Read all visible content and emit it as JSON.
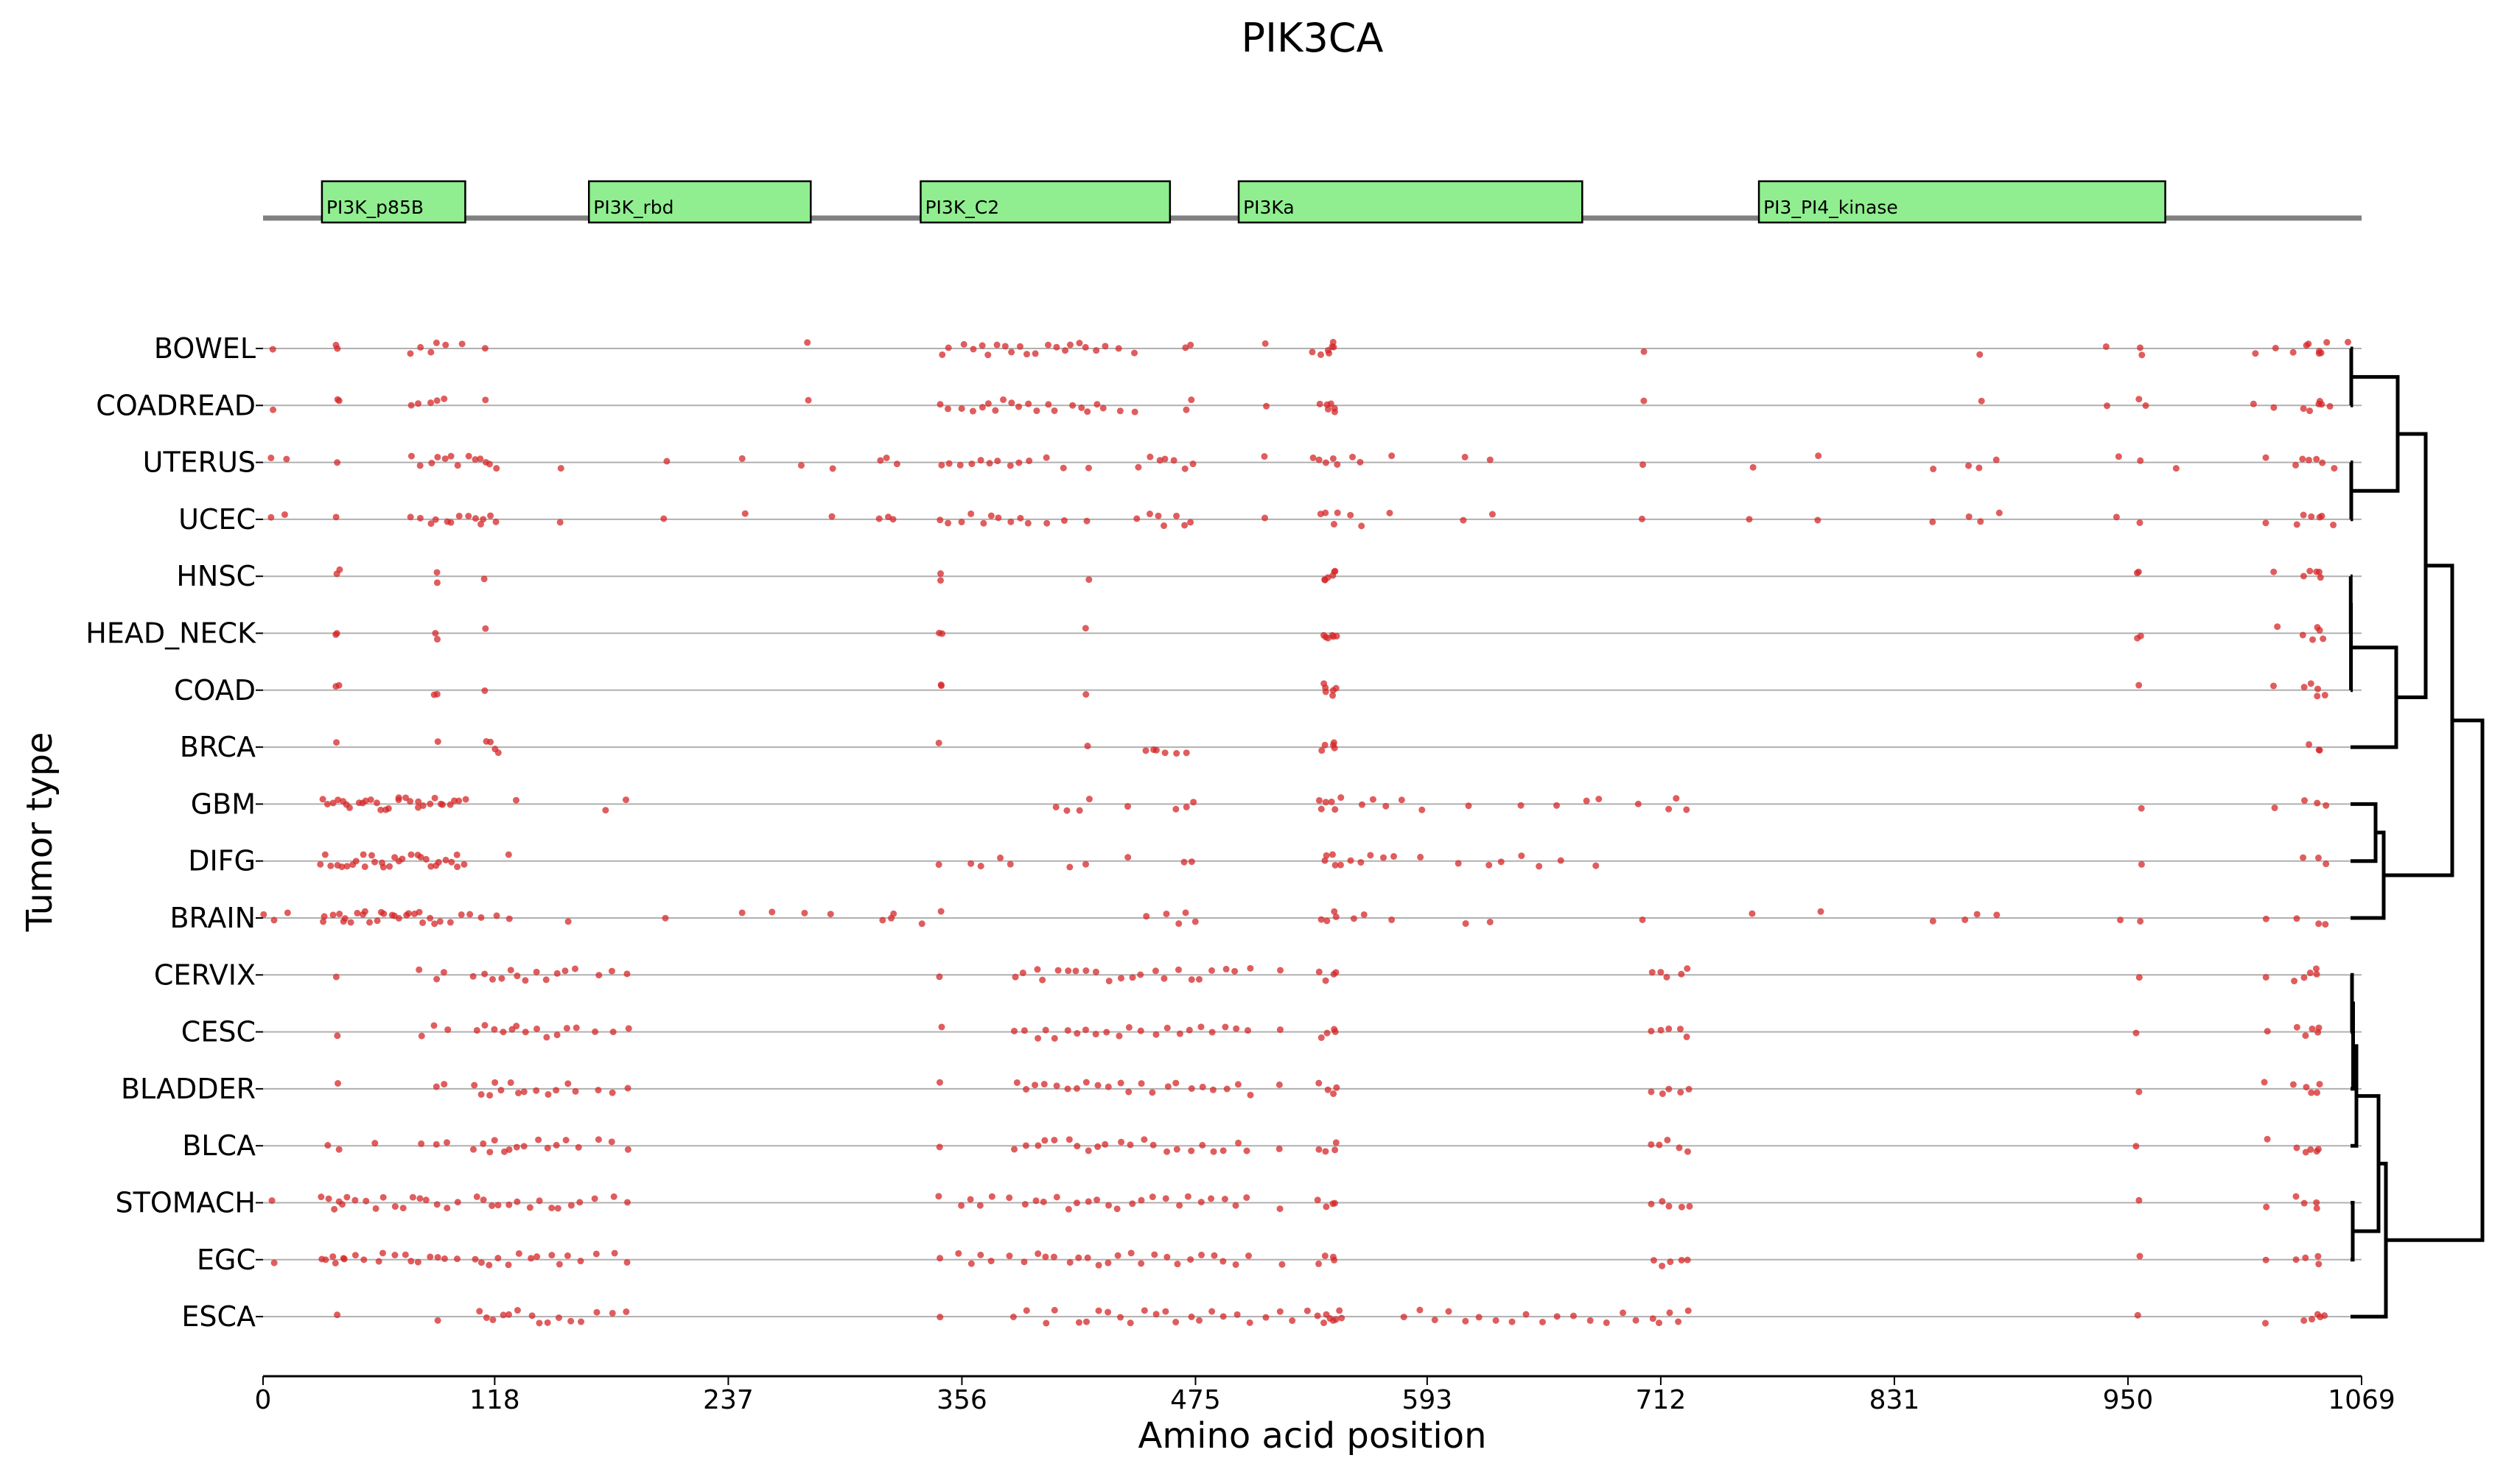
{
  "chart_data": {
    "type": "scatter",
    "title": "PIK3CA",
    "xlabel": "Amino acid position",
    "ylabel": "Tumor type",
    "xlim": [
      0,
      1069
    ],
    "xticks": [
      0,
      118,
      237,
      356,
      475,
      593,
      712,
      831,
      950,
      1069
    ],
    "grid": "horizontal row lines",
    "point_color": "#d62728",
    "domain_color": "#90ee90",
    "protein_line_color": "#808080",
    "domains": [
      {
        "name": "PI3K_p85B",
        "start": 30,
        "end": 103
      },
      {
        "name": "PI3K_rbd",
        "start": 166,
        "end": 279
      },
      {
        "name": "PI3K_C2",
        "start": 335,
        "end": 462
      },
      {
        "name": "PI3Ka",
        "start": 497,
        "end": 672
      },
      {
        "name": "PI3_PI4_kinase",
        "start": 762,
        "end": 969
      }
    ],
    "categories": [
      "BOWEL",
      "COADREAD",
      "UTERUS",
      "UCEC",
      "HNSC",
      "HEAD_NECK",
      "COAD",
      "BRCA",
      "GBM",
      "DIFG",
      "BRAIN",
      "CERVIX",
      "CESC",
      "BLADDER",
      "BLCA",
      "STOMACH",
      "EGC",
      "ESCA"
    ],
    "mutations": {
      "BOWEL": [
        5,
        38,
        38,
        76,
        80,
        86,
        88,
        93,
        101,
        113,
        278,
        345,
        350,
        356,
        362,
        366,
        370,
        374,
        378,
        382,
        386,
        390,
        394,
        400,
        404,
        408,
        412,
        416,
        420,
        424,
        428,
        436,
        444,
        470,
        473,
        510,
        535,
        538,
        542,
        542,
        545,
        545,
        546,
        703,
        875,
        940,
        956,
        958,
        1015,
        1025,
        1035,
        1040,
        1043,
        1047,
        1047,
        1049,
        1052,
        1063
      ],
      "COADREAD": [
        5,
        38,
        38,
        76,
        80,
        86,
        88,
        93,
        113,
        278,
        345,
        350,
        356,
        362,
        366,
        370,
        374,
        378,
        382,
        386,
        390,
        394,
        400,
        404,
        412,
        416,
        420,
        424,
        428,
        436,
        444,
        470,
        473,
        510,
        538,
        542,
        542,
        545,
        545,
        546,
        703,
        875,
        940,
        956,
        958,
        1015,
        1025,
        1040,
        1043,
        1047,
        1047,
        1049,
        1052
      ],
      "UTERUS": [
        5,
        12,
        38,
        76,
        81,
        86,
        88,
        93,
        96,
        100,
        104,
        108,
        111,
        113,
        116,
        118,
        152,
        205,
        245,
        275,
        290,
        315,
        318,
        322,
        345,
        350,
        356,
        360,
        366,
        370,
        375,
        380,
        385,
        390,
        400,
        408,
        420,
        446,
        452,
        456,
        460,
        465,
        470,
        473,
        510,
        535,
        538,
        542,
        545,
        547,
        555,
        560,
        575,
        612,
        626,
        703,
        758,
        793,
        850,
        868,
        874,
        884,
        945,
        956,
        975,
        1020,
        1035,
        1040,
        1043,
        1047,
        1049,
        1055
      ],
      "UCEC": [
        5,
        12,
        38,
        76,
        81,
        86,
        88,
        93,
        96,
        100,
        104,
        108,
        111,
        113,
        116,
        118,
        152,
        205,
        245,
        290,
        315,
        318,
        322,
        345,
        350,
        356,
        360,
        366,
        370,
        375,
        380,
        385,
        390,
        400,
        408,
        420,
        446,
        452,
        456,
        460,
        465,
        470,
        473,
        510,
        538,
        542,
        545,
        547,
        555,
        560,
        575,
        612,
        626,
        703,
        758,
        793,
        850,
        868,
        874,
        884,
        945,
        956,
        1020,
        1035,
        1040,
        1043,
        1047,
        1049,
        1055
      ],
      "HNSC": [
        38,
        38,
        88,
        88,
        113,
        345,
        345,
        420,
        540,
        542,
        542,
        545,
        545,
        546,
        955,
        956,
        1025,
        1040,
        1043,
        1047,
        1047,
        1049
      ],
      "HEAD_NECK": [
        38,
        38,
        88,
        88,
        113,
        345,
        345,
        420,
        540,
        542,
        542,
        545,
        545,
        546,
        955,
        956,
        1025,
        1040,
        1043,
        1047,
        1047,
        1049
      ],
      "COAD": [
        38,
        38,
        88,
        88,
        113,
        345,
        345,
        420,
        540,
        542,
        542,
        545,
        545,
        546,
        956,
        1025,
        1040,
        1043,
        1047,
        1047,
        1050
      ],
      "BRCA": [
        38,
        88,
        113,
        116,
        118,
        120,
        345,
        420,
        449,
        453,
        456,
        460,
        465,
        470,
        540,
        542,
        545,
        545,
        546,
        1043,
        1047,
        1047
      ],
      "GBM": [
        30,
        32,
        35,
        38,
        40,
        42,
        45,
        48,
        50,
        52,
        55,
        58,
        60,
        62,
        65,
        68,
        70,
        72,
        75,
        78,
        80,
        82,
        85,
        88,
        90,
        92,
        95,
        98,
        100,
        103,
        130,
        175,
        185,
        404,
        410,
        416,
        420,
        440,
        466,
        470,
        473,
        538,
        540,
        542,
        545,
        546,
        548,
        560,
        566,
        572,
        580,
        590,
        615,
        640,
        660,
        675,
        680,
        700,
        715,
        720,
        726,
        956,
        1025,
        1040,
        1047,
        1050
      ],
      "DIFG": [
        30,
        32,
        35,
        38,
        40,
        42,
        45,
        48,
        50,
        52,
        55,
        58,
        60,
        62,
        65,
        68,
        70,
        72,
        75,
        78,
        80,
        82,
        85,
        88,
        90,
        92,
        95,
        98,
        100,
        103,
        126,
        345,
        360,
        366,
        375,
        380,
        410,
        420,
        440,
        470,
        473,
        540,
        542,
        545,
        546,
        548,
        555,
        560,
        565,
        570,
        575,
        590,
        610,
        625,
        630,
        640,
        650,
        660,
        680,
        956,
        1040,
        1047,
        1050
      ],
      "BRAIN": [
        0,
        5,
        12,
        30,
        32,
        35,
        38,
        40,
        42,
        45,
        48,
        50,
        52,
        55,
        58,
        60,
        62,
        65,
        68,
        70,
        72,
        75,
        78,
        80,
        82,
        85,
        88,
        90,
        95,
        100,
        105,
        110,
        118,
        125,
        155,
        205,
        245,
        260,
        275,
        290,
        315,
        320,
        322,
        335,
        345,
        450,
        460,
        466,
        470,
        475,
        538,
        542,
        545,
        546,
        555,
        560,
        575,
        612,
        626,
        703,
        758,
        793,
        850,
        868,
        874,
        884,
        945,
        956,
        1020,
        1035,
        1047,
        1050
      ],
      "CERVIX": [
        38,
        80,
        88,
        93,
        108,
        112,
        118,
        122,
        126,
        130,
        134,
        140,
        145,
        150,
        155,
        160,
        170,
        178,
        186,
        345,
        383,
        388,
        394,
        398,
        404,
        410,
        415,
        420,
        425,
        430,
        436,
        442,
        448,
        454,
        460,
        466,
        472,
        478,
        484,
        490,
        496,
        502,
        518,
        538,
        542,
        545,
        546,
        708,
        712,
        716,
        722,
        726,
        955,
        1020,
        1035,
        1040,
        1043,
        1047,
        1047
      ],
      "CESC": [
        38,
        80,
        88,
        93,
        108,
        112,
        118,
        122,
        126,
        130,
        134,
        140,
        145,
        150,
        155,
        160,
        170,
        178,
        186,
        345,
        383,
        388,
        394,
        398,
        404,
        410,
        415,
        420,
        425,
        430,
        436,
        442,
        448,
        454,
        460,
        466,
        472,
        478,
        484,
        490,
        496,
        502,
        518,
        538,
        542,
        545,
        546,
        708,
        712,
        716,
        722,
        726,
        955,
        1020,
        1035,
        1040,
        1043,
        1047,
        1047
      ],
      "BLADDER": [
        38,
        88,
        93,
        108,
        112,
        115,
        118,
        122,
        126,
        130,
        134,
        140,
        145,
        150,
        155,
        160,
        170,
        178,
        186,
        345,
        383,
        388,
        394,
        398,
        404,
        410,
        415,
        420,
        425,
        430,
        436,
        442,
        448,
        454,
        460,
        466,
        472,
        478,
        484,
        490,
        496,
        502,
        518,
        538,
        542,
        545,
        546,
        708,
        712,
        716,
        722,
        726,
        955,
        1020,
        1035,
        1040,
        1043,
        1047,
        1047
      ],
      "BLCA": [
        34,
        38,
        58,
        80,
        88,
        93,
        108,
        112,
        115,
        118,
        122,
        126,
        130,
        134,
        140,
        145,
        150,
        155,
        160,
        170,
        178,
        186,
        345,
        383,
        388,
        394,
        398,
        404,
        410,
        415,
        420,
        425,
        430,
        436,
        442,
        448,
        454,
        460,
        466,
        472,
        478,
        484,
        490,
        496,
        502,
        518,
        538,
        542,
        545,
        546,
        708,
        712,
        716,
        722,
        726,
        955,
        1020,
        1035,
        1040,
        1043,
        1047,
        1047
      ],
      "STOMACH": [
        5,
        30,
        33,
        36,
        38,
        40,
        42,
        48,
        52,
        58,
        62,
        68,
        72,
        76,
        80,
        84,
        88,
        93,
        100,
        108,
        112,
        116,
        120,
        126,
        130,
        136,
        140,
        146,
        150,
        156,
        162,
        170,
        178,
        186,
        345,
        355,
        360,
        366,
        372,
        380,
        388,
        394,
        398,
        404,
        410,
        415,
        420,
        425,
        430,
        436,
        442,
        448,
        454,
        460,
        466,
        472,
        478,
        484,
        490,
        496,
        502,
        518,
        538,
        542,
        545,
        546,
        708,
        712,
        716,
        722,
        726,
        955,
        1020,
        1035,
        1040,
        1047,
        1047
      ],
      "EGC": [
        5,
        30,
        33,
        36,
        38,
        40,
        42,
        48,
        52,
        58,
        62,
        68,
        72,
        76,
        80,
        84,
        88,
        93,
        100,
        108,
        112,
        116,
        120,
        126,
        130,
        136,
        140,
        146,
        150,
        156,
        162,
        170,
        178,
        186,
        345,
        355,
        360,
        366,
        372,
        380,
        388,
        394,
        398,
        404,
        410,
        415,
        420,
        425,
        430,
        436,
        442,
        448,
        454,
        460,
        466,
        472,
        478,
        484,
        490,
        496,
        502,
        518,
        538,
        542,
        545,
        546,
        708,
        712,
        716,
        722,
        726,
        955,
        1020,
        1035,
        1040,
        1047,
        1047
      ],
      "ESCA": [
        38,
        88,
        110,
        114,
        118,
        122,
        126,
        130,
        136,
        140,
        146,
        150,
        156,
        162,
        170,
        178,
        186,
        345,
        383,
        390,
        398,
        404,
        415,
        420,
        425,
        430,
        436,
        442,
        448,
        454,
        460,
        466,
        472,
        478,
        484,
        490,
        496,
        502,
        510,
        518,
        525,
        532,
        538,
        540,
        542,
        543,
        545,
        546,
        548,
        550,
        580,
        590,
        598,
        604,
        612,
        620,
        628,
        636,
        644,
        652,
        660,
        668,
        676,
        684,
        692,
        700,
        708,
        712,
        716,
        722,
        726,
        955,
        1020,
        1040,
        1043,
        1047,
        1047,
        1049
      ]
    },
    "dendrogram": {
      "leaf_order": [
        0,
        1,
        2,
        3,
        4,
        5,
        6,
        7,
        8,
        9,
        10,
        11,
        12,
        13,
        14,
        15,
        16,
        17
      ],
      "merges": [
        [
          0,
          1,
          1
        ],
        [
          2,
          3,
          1
        ],
        [
          18,
          19,
          64
        ],
        [
          4,
          5,
          0.3
        ],
        [
          21,
          6,
          0.6
        ],
        [
          22,
          7,
          62
        ],
        [
          20,
          23,
          102
        ],
        [
          8,
          9,
          34
        ],
        [
          25,
          10,
          45
        ],
        [
          24,
          26,
          138
        ],
        [
          11,
          12,
          2
        ],
        [
          28,
          13,
          3.5
        ],
        [
          29,
          14,
          8
        ],
        [
          15,
          16,
          3
        ],
        [
          30,
          31,
          38
        ],
        [
          32,
          17,
          48
        ],
        [
          27,
          33,
          179
        ]
      ]
    }
  }
}
